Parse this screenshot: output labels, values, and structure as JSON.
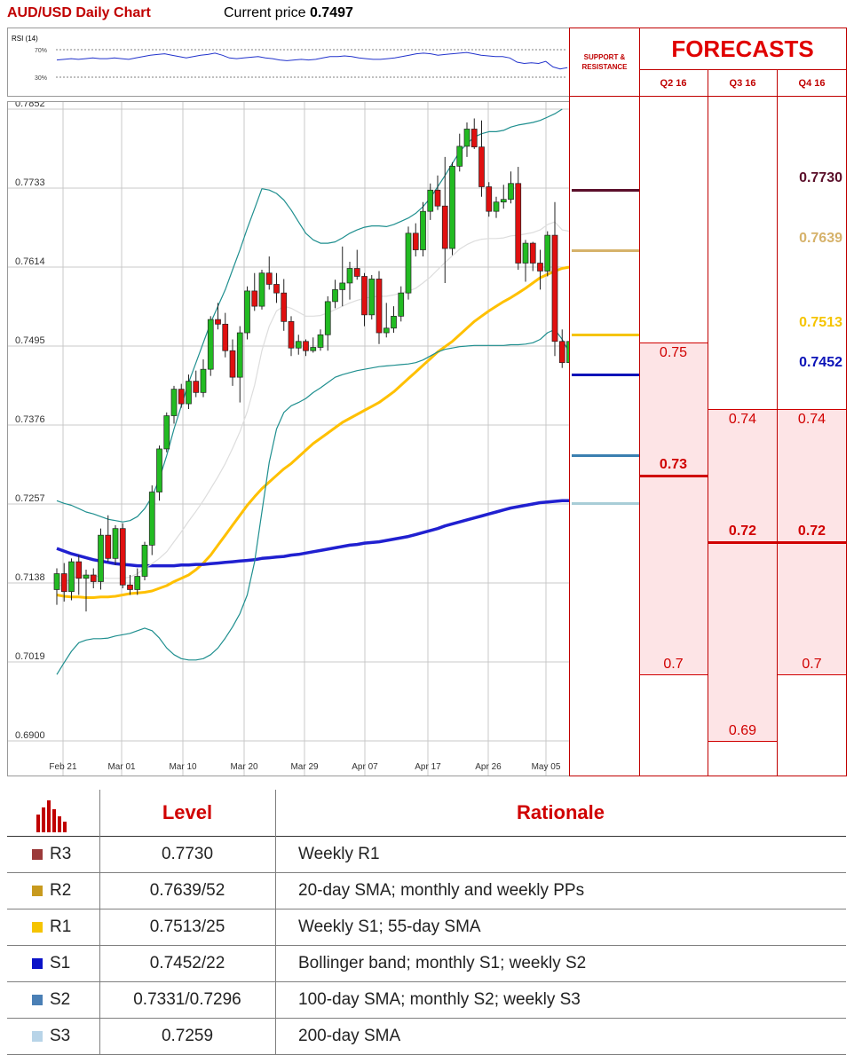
{
  "header": {
    "title": "AUD/USD Daily Chart",
    "price_label": "Current price",
    "price_value": "0.7497"
  },
  "rsi": {
    "label": "RSI (14)",
    "levels": [
      "70%",
      "30%"
    ]
  },
  "chart_data": {
    "type": "candlestick",
    "title": "AUD/USD Daily Chart",
    "ylim": [
      0.69,
      0.7852
    ],
    "ytick_labels": [
      "0.7852",
      "0.7733",
      "0.7614",
      "0.7495",
      "0.7376",
      "0.7257",
      "0.7138",
      "0.7019",
      "0.6900"
    ],
    "xtick_labels": [
      "Feb 21",
      "Mar 01",
      "Mar 10",
      "Mar 20",
      "Mar 29",
      "Apr 07",
      "Apr 17",
      "Apr 26",
      "May 05"
    ],
    "grid": true,
    "candles_ohlc": [
      [
        0.7128,
        0.716,
        0.7105,
        0.7152
      ],
      [
        0.7152,
        0.7168,
        0.711,
        0.7125
      ],
      [
        0.7125,
        0.7175,
        0.7112,
        0.717
      ],
      [
        0.717,
        0.718,
        0.712,
        0.7145
      ],
      [
        0.7145,
        0.7158,
        0.7095,
        0.715
      ],
      [
        0.715,
        0.716,
        0.713,
        0.714
      ],
      [
        0.714,
        0.722,
        0.7128,
        0.721
      ],
      [
        0.721,
        0.724,
        0.717,
        0.7175
      ],
      [
        0.7175,
        0.7225,
        0.7165,
        0.722
      ],
      [
        0.722,
        0.7228,
        0.713,
        0.7135
      ],
      [
        0.7135,
        0.715,
        0.712,
        0.7128
      ],
      [
        0.7128,
        0.716,
        0.712,
        0.7148
      ],
      [
        0.7148,
        0.72,
        0.7142,
        0.7195
      ],
      [
        0.7195,
        0.7285,
        0.718,
        0.7275
      ],
      [
        0.7275,
        0.7345,
        0.7262,
        0.734
      ],
      [
        0.734,
        0.7395,
        0.7335,
        0.739
      ],
      [
        0.739,
        0.7435,
        0.7378,
        0.743
      ],
      [
        0.743,
        0.7438,
        0.7402,
        0.7408
      ],
      [
        0.7408,
        0.7452,
        0.74,
        0.7442
      ],
      [
        0.7442,
        0.7458,
        0.7418,
        0.7425
      ],
      [
        0.7425,
        0.7475,
        0.7418,
        0.746
      ],
      [
        0.746,
        0.754,
        0.745,
        0.7535
      ],
      [
        0.7535,
        0.756,
        0.752,
        0.7528
      ],
      [
        0.7528,
        0.7545,
        0.7478,
        0.7488
      ],
      [
        0.7488,
        0.7505,
        0.7435,
        0.7448
      ],
      [
        0.7448,
        0.7525,
        0.741,
        0.7515
      ],
      [
        0.7515,
        0.7585,
        0.7505,
        0.7578
      ],
      [
        0.7578,
        0.7605,
        0.7548,
        0.7555
      ],
      [
        0.7555,
        0.761,
        0.755,
        0.7605
      ],
      [
        0.7605,
        0.763,
        0.758,
        0.7588
      ],
      [
        0.7588,
        0.7605,
        0.756,
        0.7575
      ],
      [
        0.7575,
        0.7596,
        0.7518,
        0.7532
      ],
      [
        0.7532,
        0.754,
        0.748,
        0.7492
      ],
      [
        0.7492,
        0.7512,
        0.7482,
        0.7502
      ],
      [
        0.7502,
        0.7505,
        0.748,
        0.7488
      ],
      [
        0.7488,
        0.7508,
        0.7485,
        0.7493
      ],
      [
        0.7493,
        0.752,
        0.7488,
        0.7512
      ],
      [
        0.7512,
        0.757,
        0.7488,
        0.7562
      ],
      [
        0.7562,
        0.7595,
        0.7552,
        0.758
      ],
      [
        0.758,
        0.7645,
        0.7555,
        0.759
      ],
      [
        0.759,
        0.7622,
        0.7565,
        0.7612
      ],
      [
        0.7612,
        0.764,
        0.7595,
        0.76
      ],
      [
        0.76,
        0.7605,
        0.7525,
        0.7542
      ],
      [
        0.7542,
        0.7602,
        0.7535,
        0.7596
      ],
      [
        0.7596,
        0.7608,
        0.7498,
        0.7515
      ],
      [
        0.7515,
        0.756,
        0.7508,
        0.7522
      ],
      [
        0.7522,
        0.7555,
        0.7515,
        0.754
      ],
      [
        0.754,
        0.7585,
        0.7532,
        0.7575
      ],
      [
        0.7575,
        0.7675,
        0.7565,
        0.7665
      ],
      [
        0.7665,
        0.768,
        0.763,
        0.764
      ],
      [
        0.764,
        0.7712,
        0.763,
        0.7698
      ],
      [
        0.7698,
        0.774,
        0.7685,
        0.773
      ],
      [
        0.773,
        0.7752,
        0.77,
        0.7706
      ],
      [
        0.7706,
        0.778,
        0.759,
        0.7642
      ],
      [
        0.7642,
        0.7772,
        0.7632,
        0.7766
      ],
      [
        0.7766,
        0.7815,
        0.7758,
        0.7796
      ],
      [
        0.7796,
        0.7832,
        0.778,
        0.7822
      ],
      [
        0.7822,
        0.7838,
        0.7792,
        0.7795
      ],
      [
        0.7795,
        0.7835,
        0.772,
        0.7735
      ],
      [
        0.7735,
        0.7742,
        0.769,
        0.7698
      ],
      [
        0.7698,
        0.772,
        0.7688,
        0.7712
      ],
      [
        0.7712,
        0.7738,
        0.7702,
        0.7716
      ],
      [
        0.7716,
        0.7758,
        0.771,
        0.774
      ],
      [
        0.774,
        0.7765,
        0.761,
        0.762
      ],
      [
        0.762,
        0.7655,
        0.7592,
        0.765
      ],
      [
        0.765,
        0.7652,
        0.7608,
        0.762
      ],
      [
        0.762,
        0.764,
        0.758,
        0.7608
      ],
      [
        0.7608,
        0.7668,
        0.76,
        0.7662
      ],
      [
        0.7662,
        0.7712,
        0.748,
        0.7502
      ],
      [
        0.7502,
        0.752,
        0.7462,
        0.747
      ],
      [
        0.747,
        0.7508,
        0.7465,
        0.7502
      ]
    ],
    "series": [
      {
        "name": "",
        "color": "#ffc000",
        "values_start_index": 0,
        "points": [
          0.712,
          0.7118,
          0.7117,
          0.7117,
          0.7116,
          0.7116,
          0.7117,
          0.7117,
          0.7118,
          0.712,
          0.7122,
          0.7123,
          0.7124,
          0.7126,
          0.713,
          0.7134,
          0.714,
          0.7145,
          0.715,
          0.7158,
          0.7168,
          0.718,
          0.7195,
          0.721,
          0.7225,
          0.724,
          0.7255,
          0.7268,
          0.728,
          0.729,
          0.73,
          0.731,
          0.7318,
          0.7328,
          0.7338,
          0.7348,
          0.7356,
          0.7364,
          0.7372,
          0.738,
          0.7386,
          0.7392,
          0.7398,
          0.7404,
          0.741,
          0.7418,
          0.7426,
          0.7436,
          0.7446,
          0.7456,
          0.7466,
          0.7476,
          0.7486,
          0.7494,
          0.7502,
          0.7512,
          0.7522,
          0.7532,
          0.754,
          0.7548,
          0.7555,
          0.7562,
          0.7568,
          0.7575,
          0.7582,
          0.759,
          0.7598,
          0.7603,
          0.7608,
          0.7612,
          0.7614
        ]
      },
      {
        "name": "",
        "color": "#2020d0",
        "values_start_index": 0,
        "points": [
          0.719,
          0.7186,
          0.7182,
          0.7179,
          0.7176,
          0.7173,
          0.7171,
          0.7169,
          0.7167,
          0.7166,
          0.7165,
          0.7164,
          0.7164,
          0.7164,
          0.7164,
          0.7164,
          0.7164,
          0.7165,
          0.7165,
          0.7166,
          0.7166,
          0.7167,
          0.7168,
          0.7169,
          0.717,
          0.7171,
          0.7172,
          0.7173,
          0.7175,
          0.7176,
          0.7177,
          0.7178,
          0.718,
          0.7181,
          0.7183,
          0.7185,
          0.7187,
          0.7189,
          0.7191,
          0.7193,
          0.7195,
          0.7196,
          0.7198,
          0.7199,
          0.72,
          0.7202,
          0.7204,
          0.7206,
          0.7208,
          0.7211,
          0.7214,
          0.7217,
          0.722,
          0.7224,
          0.7227,
          0.723,
          0.7233,
          0.7236,
          0.7239,
          0.7242,
          0.7245,
          0.7248,
          0.7251,
          0.7253,
          0.7255,
          0.7257,
          0.7259,
          0.726,
          0.7261,
          0.7262,
          0.7262
        ]
      },
      {
        "name": "",
        "color": "#1f8f8f",
        "values_start_index": 0,
        "points": [
          0.7262,
          0.7258,
          0.7255,
          0.725,
          0.7245,
          0.7242,
          0.7238,
          0.7234,
          0.7232,
          0.723,
          0.7232,
          0.7238,
          0.725,
          0.7268,
          0.7295,
          0.733,
          0.737,
          0.7405,
          0.744,
          0.747,
          0.75,
          0.753,
          0.7555,
          0.758,
          0.761,
          0.764,
          0.7672,
          0.7702,
          0.7732,
          0.773,
          0.7725,
          0.7715,
          0.77,
          0.7682,
          0.7665,
          0.7655,
          0.765,
          0.765,
          0.7652,
          0.7658,
          0.7665,
          0.767,
          0.7674,
          0.7676,
          0.7676,
          0.7675,
          0.7678,
          0.7683,
          0.7688,
          0.7695,
          0.7705,
          0.7718,
          0.7735,
          0.7752,
          0.777,
          0.7788,
          0.78,
          0.781,
          0.7815,
          0.7818,
          0.7818,
          0.782,
          0.7825,
          0.7828,
          0.783,
          0.7832,
          0.7835,
          0.784,
          0.7845,
          0.7852
        ]
      },
      {
        "name": "",
        "color": "#1f8f8f",
        "values_start_index": 0,
        "points": [
          0.7,
          0.7018,
          0.7035,
          0.7048,
          0.7052,
          0.7054,
          0.7054,
          0.7055,
          0.7058,
          0.706,
          0.7062,
          0.7066,
          0.707,
          0.7066,
          0.7055,
          0.704,
          0.703,
          0.7024,
          0.7022,
          0.7022,
          0.7024,
          0.703,
          0.704,
          0.7055,
          0.7072,
          0.7092,
          0.712,
          0.717,
          0.7245,
          0.732,
          0.737,
          0.7395,
          0.7405,
          0.741,
          0.7416,
          0.7425,
          0.7432,
          0.744,
          0.7448,
          0.7452,
          0.7455,
          0.7458,
          0.746,
          0.7462,
          0.7464,
          0.7465,
          0.7466,
          0.7467,
          0.7468,
          0.747,
          0.7474,
          0.748,
          0.7486,
          0.749,
          0.7492,
          0.7494,
          0.7495,
          0.7496,
          0.7496,
          0.7496,
          0.7496,
          0.7496,
          0.7497,
          0.7497,
          0.7498,
          0.75,
          0.7505,
          0.7515,
          0.752,
          0.7505,
          0.7485
        ]
      },
      {
        "name": "",
        "color": "#dddddd",
        "values_start_index": 0,
        "points": [
          0.7131,
          0.7138,
          0.7145,
          0.7149,
          0.7149,
          0.715,
          0.7146,
          0.7145,
          0.7145,
          0.7145,
          0.7147,
          0.7152,
          0.716,
          0.7167,
          0.7175,
          0.7185,
          0.72,
          0.7215,
          0.7231,
          0.7246,
          0.7262,
          0.728,
          0.7298,
          0.7318,
          0.7341,
          0.7366,
          0.7396,
          0.7436,
          0.7488,
          0.7525,
          0.7548,
          0.7555,
          0.7552,
          0.7546,
          0.754,
          0.754,
          0.7541,
          0.7545,
          0.755,
          0.7555,
          0.756,
          0.7564,
          0.7567,
          0.7569,
          0.757,
          0.757,
          0.7572,
          0.7575,
          0.7578,
          0.7582,
          0.759,
          0.7599,
          0.761,
          0.7621,
          0.7631,
          0.7641,
          0.7648,
          0.7653,
          0.7656,
          0.7657,
          0.7657,
          0.7658,
          0.7661,
          0.7662,
          0.7664,
          0.7666,
          0.767,
          0.7678,
          0.7682,
          0.767,
          0.7668
        ]
      }
    ],
    "rsi_values": [
      55,
      56,
      57,
      56,
      57,
      58,
      57,
      57,
      58,
      57,
      56,
      58,
      60,
      62,
      63,
      64,
      62,
      60,
      58,
      60,
      62,
      63,
      65,
      62,
      58,
      57,
      58,
      59,
      60,
      58,
      57,
      55,
      54,
      55,
      56,
      55,
      56,
      58,
      60,
      60,
      61,
      60,
      58,
      57,
      56,
      56,
      57,
      58,
      60,
      62,
      64,
      65,
      64,
      62,
      63,
      64,
      65,
      66,
      64,
      62,
      61,
      60,
      60,
      58,
      52,
      50,
      51,
      50,
      53,
      45,
      42,
      44
    ],
    "rsi_levels": [
      70,
      30
    ]
  },
  "forecasts": {
    "sr_label": "SUPPORT & RESISTANCE",
    "title": "FORECASTS",
    "quarters": [
      "Q2 16",
      "Q3 16",
      "Q4 16"
    ],
    "sr_levels": [
      {
        "value": "0.7730",
        "price": 0.773,
        "color": "#5b0f2a"
      },
      {
        "value": "0.7639",
        "price": 0.7639,
        "color": "#d6b26a"
      },
      {
        "value": "0.7513",
        "price": 0.7513,
        "color": "#f5c400"
      },
      {
        "value": "0.7452",
        "price": 0.7452,
        "color": "#0b13b8"
      },
      {
        "value": "0.7331",
        "price": 0.7331,
        "color": "#3a7fb0"
      },
      {
        "value": "0.7259",
        "price": 0.7259,
        "color": "#a8cdd7"
      }
    ],
    "q2": {
      "high": "0.75",
      "mid": "0.73",
      "low": "0.7",
      "high_v": 0.75,
      "mid_v": 0.73,
      "low_v": 0.7
    },
    "q3": {
      "high": "0.74",
      "mid": "0.72",
      "low": "0.69",
      "high_v": 0.74,
      "mid_v": 0.72,
      "low_v": 0.69
    },
    "q4": {
      "high": "0.74",
      "mid": "0.72",
      "low": "0.7",
      "high_v": 0.74,
      "mid_v": 0.72,
      "low_v": 0.7
    }
  },
  "table": {
    "col_level": "Level",
    "col_rationale": "Rationale",
    "rows": [
      {
        "name": "R3",
        "level": "0.7730",
        "rationale": "Weekly R1",
        "color": "#9b3a3a"
      },
      {
        "name": "R2",
        "level": "0.7639/52",
        "rationale": "20-day SMA; monthly and weekly PPs",
        "color": "#c89a1e"
      },
      {
        "name": "R1",
        "level": "0.7513/25",
        "rationale": "Weekly S1; 55-day SMA",
        "color": "#f5c400"
      },
      {
        "name": "S1",
        "level": "0.7452/22",
        "rationale": "Bollinger band; monthly S1; weekly S2",
        "color": "#0b13c8"
      },
      {
        "name": "S2",
        "level": "0.7331/0.7296",
        "rationale": "100-day SMA; monthly S2; weekly S3",
        "color": "#4a7fb5"
      },
      {
        "name": "S3",
        "level": "0.7259",
        "rationale": "200-day SMA",
        "color": "#b8d4e8"
      }
    ]
  }
}
